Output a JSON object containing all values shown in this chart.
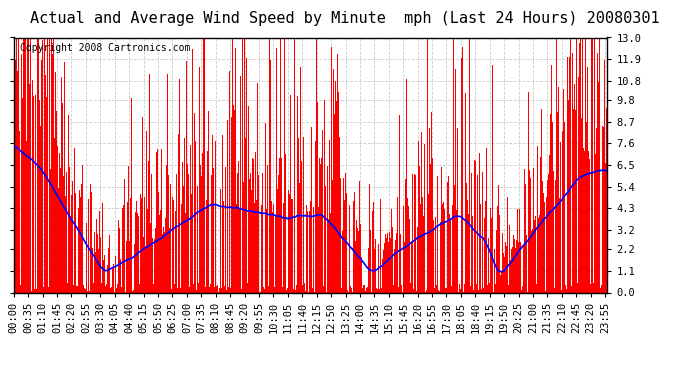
{
  "title": "Actual and Average Wind Speed by Minute  mph (Last 24 Hours) 20080301",
  "copyright": "Copyright 2008 Cartronics.com",
  "yticks": [
    0.0,
    1.1,
    2.2,
    3.2,
    4.3,
    5.4,
    6.5,
    7.6,
    8.7,
    9.8,
    10.8,
    11.9,
    13.0
  ],
  "ylim": [
    0.0,
    13.0
  ],
  "bar_color": "#FF0000",
  "line_color": "#0000FF",
  "background_color": "#FFFFFF",
  "grid_color": "#AAAAAA",
  "title_fontsize": 11,
  "copyright_fontsize": 7,
  "tick_fontsize": 7.5
}
